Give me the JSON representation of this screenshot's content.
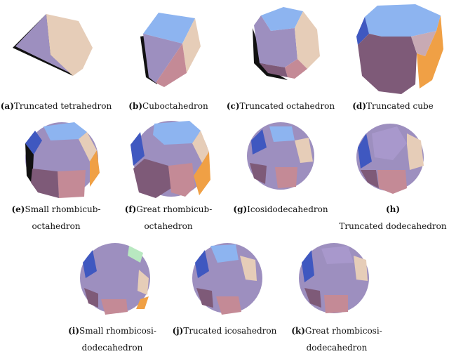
{
  "figures": [
    {
      "label": "(a)",
      "name": "Truncated tetrahedron",
      "line2": ""
    },
    {
      "label": "(b)",
      "name": "Cuboctahedron",
      "line2": ""
    },
    {
      "label": "(c)",
      "name": "Truncated octahedron",
      "line2": ""
    },
    {
      "label": "(d)",
      "name": "Truncated cube",
      "line2": ""
    },
    {
      "label": "(e)",
      "name": "Small rhombicub-",
      "line2": "octahedron"
    },
    {
      "label": "(f)",
      "name": "Great rhombicub-",
      "line2": "octahedron"
    },
    {
      "label": "(g)",
      "name": "Icosidodecahedron",
      "line2": ""
    },
    {
      "label": "(h)",
      "name": "",
      "line2": "Truncated dodecahedron"
    },
    {
      "label": "(i)",
      "name": "Small rhombicosi-",
      "line2": "dodecahedron"
    },
    {
      "label": "(j)",
      "name": "Trucated icosahedron",
      "line2": ""
    },
    {
      "label": "(k)",
      "name": "Great rhombicosi-",
      "line2": "dodecahedron"
    }
  ],
  "colors": {
    "blue": "#8db4f0",
    "violet": "#9d8fbf",
    "tan": "#e6cdb8",
    "rose": "#c48a96",
    "plum": "#7e5a78",
    "orange": "#f0a045",
    "navy": "#3f58c0",
    "black": "#111111",
    "green": "#b8e8c0"
  }
}
